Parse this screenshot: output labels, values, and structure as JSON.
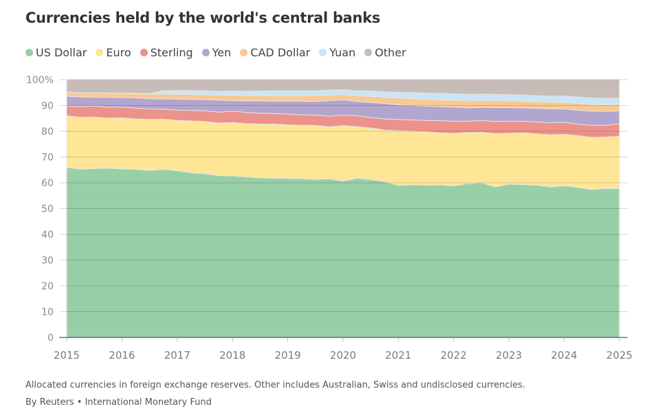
{
  "chart_data": {
    "type": "area",
    "stacked": true,
    "title": "Currencies held by the world's central banks",
    "xlabel": "",
    "ylabel": "",
    "ylim": [
      0,
      100
    ],
    "xlim": [
      2015,
      2025
    ],
    "y_ticks": [
      "0",
      "10",
      "20",
      "30",
      "40",
      "50",
      "60",
      "70",
      "80",
      "90",
      "100%"
    ],
    "y_tick_values": [
      0,
      10,
      20,
      30,
      40,
      50,
      60,
      70,
      80,
      90,
      100
    ],
    "x_ticks": [
      "2015",
      "2016",
      "2017",
      "2018",
      "2019",
      "2020",
      "2021",
      "2022",
      "2023",
      "2024",
      "2025"
    ],
    "x_tick_values": [
      2015,
      2016,
      2017,
      2018,
      2019,
      2020,
      2021,
      2022,
      2023,
      2024,
      2025
    ],
    "grid": true,
    "legend_position": "top-left",
    "x": [
      2015.0,
      2015.25,
      2015.5,
      2015.75,
      2016.0,
      2016.25,
      2016.5,
      2016.75,
      2017.0,
      2017.25,
      2017.5,
      2017.75,
      2018.0,
      2018.25,
      2018.5,
      2018.75,
      2019.0,
      2019.25,
      2019.5,
      2019.75,
      2020.0,
      2020.25,
      2020.5,
      2020.75,
      2021.0,
      2021.25,
      2021.5,
      2021.75,
      2022.0,
      2022.25,
      2022.5,
      2022.75,
      2023.0,
      2023.25,
      2023.5,
      2023.75,
      2024.0,
      2024.25,
      2024.5,
      2024.75,
      2025.0
    ],
    "series": [
      {
        "name": "US Dollar",
        "color": "#98cfa7",
        "values": [
          66.0,
          65.3,
          65.5,
          65.7,
          65.4,
          65.2,
          64.8,
          65.3,
          64.7,
          63.9,
          63.5,
          62.8,
          62.7,
          62.3,
          61.9,
          61.8,
          61.7,
          61.6,
          61.3,
          61.6,
          60.7,
          61.8,
          61.3,
          60.5,
          59.0,
          59.3,
          59.1,
          59.2,
          58.8,
          59.7,
          60.1,
          58.4,
          59.5,
          59.3,
          59.1,
          58.4,
          58.9,
          58.2,
          57.4,
          57.8,
          57.8
        ]
      },
      {
        "name": "Euro",
        "color": "#fee696",
        "values": [
          20.0,
          20.1,
          20.0,
          19.4,
          19.8,
          19.6,
          19.8,
          19.4,
          19.5,
          20.1,
          20.3,
          20.4,
          20.7,
          20.7,
          20.9,
          21.0,
          20.8,
          20.7,
          21.0,
          20.1,
          21.5,
          20.0,
          20.0,
          20.0,
          21.2,
          20.7,
          20.7,
          20.2,
          20.4,
          19.8,
          19.5,
          20.7,
          19.7,
          20.1,
          19.9,
          20.2,
          19.9,
          20.1,
          20.2,
          20.0,
          20.2
        ]
      },
      {
        "name": "Sterling",
        "color": "#ed918b",
        "values": [
          3.8,
          4.2,
          4.3,
          4.2,
          4.2,
          4.2,
          4.1,
          3.9,
          4.0,
          4.1,
          4.2,
          4.2,
          4.4,
          4.3,
          4.2,
          4.1,
          4.2,
          4.1,
          4.0,
          4.1,
          4.1,
          4.2,
          4.0,
          4.3,
          4.4,
          4.4,
          4.4,
          4.7,
          4.7,
          4.4,
          4.6,
          4.7,
          4.7,
          4.5,
          4.6,
          4.7,
          4.7,
          4.5,
          4.7,
          4.5,
          5.0
        ]
      },
      {
        "name": "Yen",
        "color": "#b2a5ce",
        "values": [
          3.8,
          3.7,
          3.4,
          3.9,
          3.7,
          4.0,
          3.9,
          4.0,
          4.3,
          4.3,
          4.3,
          4.7,
          4.1,
          4.5,
          4.8,
          4.8,
          5.0,
          5.3,
          5.3,
          6.1,
          5.9,
          5.6,
          5.9,
          6.0,
          5.7,
          5.7,
          5.6,
          5.5,
          5.5,
          5.2,
          5.1,
          5.4,
          5.3,
          5.2,
          5.3,
          5.4,
          5.2,
          5.4,
          5.5,
          5.4,
          4.9
        ]
      },
      {
        "name": "CAD Dollar",
        "color": "#fac890",
        "values": [
          1.6,
          1.5,
          1.6,
          1.6,
          1.6,
          1.6,
          1.8,
          1.8,
          1.9,
          1.9,
          1.9,
          1.9,
          2.1,
          2.0,
          1.9,
          2.1,
          2.0,
          2.0,
          2.2,
          2.1,
          2.0,
          2.2,
          2.3,
          2.4,
          2.6,
          2.5,
          2.5,
          2.6,
          2.7,
          2.6,
          2.6,
          2.6,
          2.6,
          2.6,
          2.6,
          2.6,
          2.5,
          2.6,
          2.6,
          2.6,
          2.5
        ]
      },
      {
        "name": "Yuan",
        "color": "#c9e5f6",
        "values": [
          0.1,
          0.1,
          0.1,
          0.1,
          0.1,
          0.2,
          0.2,
          1.4,
          1.4,
          1.5,
          1.5,
          1.5,
          1.6,
          1.7,
          1.9,
          1.9,
          2.0,
          2.0,
          1.9,
          2.0,
          1.9,
          1.9,
          2.1,
          2.1,
          2.2,
          2.4,
          2.5,
          2.5,
          2.5,
          2.6,
          2.5,
          2.5,
          2.4,
          2.4,
          2.3,
          2.3,
          2.5,
          2.5,
          2.5,
          2.5,
          2.4
        ]
      },
      {
        "name": "Other",
        "color": "#c7bcb7",
        "values": [
          4.7,
          5.1,
          5.1,
          5.1,
          5.2,
          5.2,
          5.4,
          4.2,
          4.2,
          4.2,
          4.3,
          4.5,
          4.4,
          4.5,
          4.4,
          4.3,
          4.3,
          4.3,
          4.3,
          4.0,
          3.9,
          4.3,
          4.4,
          4.7,
          4.9,
          5.0,
          5.1,
          5.3,
          5.4,
          5.5,
          5.6,
          5.7,
          5.8,
          5.9,
          6.2,
          6.4,
          6.3,
          6.7,
          7.1,
          7.2,
          7.2
        ]
      }
    ]
  },
  "header": {
    "title": "Currencies held by the world's central banks"
  },
  "legend": [
    {
      "label": "US Dollar",
      "color": "#98cfa7"
    },
    {
      "label": "Euro",
      "color": "#fee696"
    },
    {
      "label": "Sterling",
      "color": "#ed918b"
    },
    {
      "label": "Yen",
      "color": "#b2a5ce"
    },
    {
      "label": "CAD Dollar",
      "color": "#fac890"
    },
    {
      "label": "Yuan",
      "color": "#c9e5f6"
    },
    {
      "label": "Other",
      "color": "#c7bcb7"
    }
  ],
  "footer": {
    "note": "Allocated currencies in foreign exchange reserves. Other includes Australian, Swiss and undisclosed currencies.",
    "source": "By Reuters • International Monetary Fund"
  }
}
